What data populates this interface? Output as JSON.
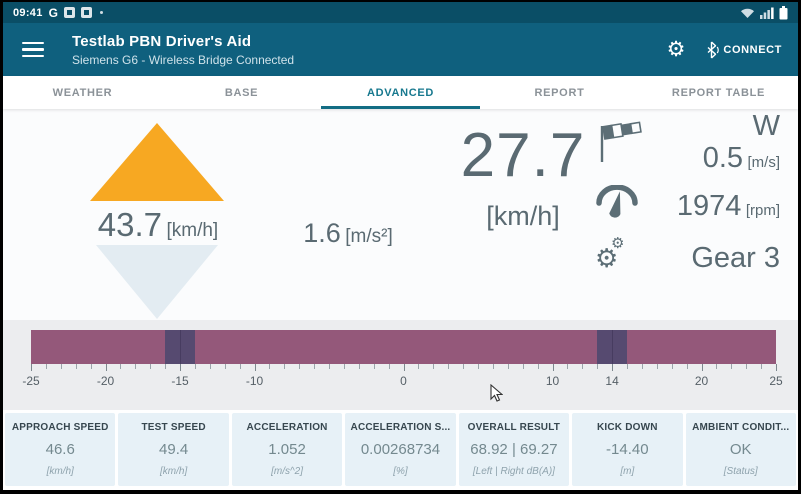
{
  "colors": {
    "status_bar": "#0a4e66",
    "app_bar": "#0f607e",
    "tab_active": "#17788e",
    "gauge_bar": "#94587a",
    "gauge_marker": "#564a70",
    "accent_triangle": "#f7a822",
    "card_bg": "#e7f1f7"
  },
  "status_bar": {
    "time": "09:41",
    "carrier": "G",
    "right_icons": [
      "wifi-icon",
      "signal-icon",
      "battery-icon"
    ]
  },
  "app_bar": {
    "title": "Testlab PBN Driver's Aid",
    "subtitle": "Siemens G6 - Wireless Bridge Connected",
    "connect_label": "CONNECT"
  },
  "tabs": [
    {
      "label": "WEATHER",
      "active": false
    },
    {
      "label": "BASE",
      "active": false
    },
    {
      "label": "ADVANCED",
      "active": true
    },
    {
      "label": "REPORT",
      "active": false
    },
    {
      "label": "REPORT TABLE",
      "active": false
    }
  ],
  "dashboard": {
    "approach": {
      "value": "43.7",
      "unit": "[km/h]"
    },
    "acceleration": {
      "value": "1.6",
      "unit": "[m/s²]"
    },
    "speed": {
      "value": "27.7",
      "unit": "[km/h]"
    },
    "wind": {
      "direction": "W",
      "value": "0.5",
      "unit": "[m/s]",
      "icon": "windsock-icon"
    },
    "engine": {
      "value": "1974",
      "unit": "[rpm]",
      "icon": "tachometer-icon"
    },
    "gear": {
      "value": "Gear 3",
      "icon": "gears-icon"
    }
  },
  "gauge": {
    "min": -25,
    "max": 25,
    "minor_tick_step": 1,
    "markers": [
      {
        "value": -15,
        "half_width": 1
      },
      {
        "value": 14,
        "half_width": 1
      }
    ],
    "tick_labels": [
      {
        "value": -25,
        "label": "-25"
      },
      {
        "value": -20,
        "label": "-20"
      },
      {
        "value": -15,
        "label": "-15"
      },
      {
        "value": -10,
        "label": "-10"
      },
      {
        "value": 0,
        "label": "0"
      },
      {
        "value": 10,
        "label": "10"
      },
      {
        "value": 14,
        "label": "14"
      },
      {
        "value": 20,
        "label": "20"
      },
      {
        "value": 25,
        "label": "25"
      }
    ]
  },
  "cards": [
    {
      "title": "APPROACH SPEED",
      "value": "46.6",
      "unit": "[km/h]"
    },
    {
      "title": "TEST SPEED",
      "value": "49.4",
      "unit": "[km/h]"
    },
    {
      "title": "ACCELERATION",
      "value": "1.052",
      "unit": "[m/s^2]"
    },
    {
      "title": "ACCELERATION S...",
      "value": "0.00268734",
      "unit": "[%]"
    },
    {
      "title": "OVERALL RESULT",
      "value": "68.92 | 69.27",
      "unit": "[Left | Right dB(A)]"
    },
    {
      "title": "KICK DOWN",
      "value": "-14.40",
      "unit": "[m]"
    },
    {
      "title": "AMBIENT CONDIT...",
      "value": "OK",
      "unit": "[Status]"
    }
  ]
}
